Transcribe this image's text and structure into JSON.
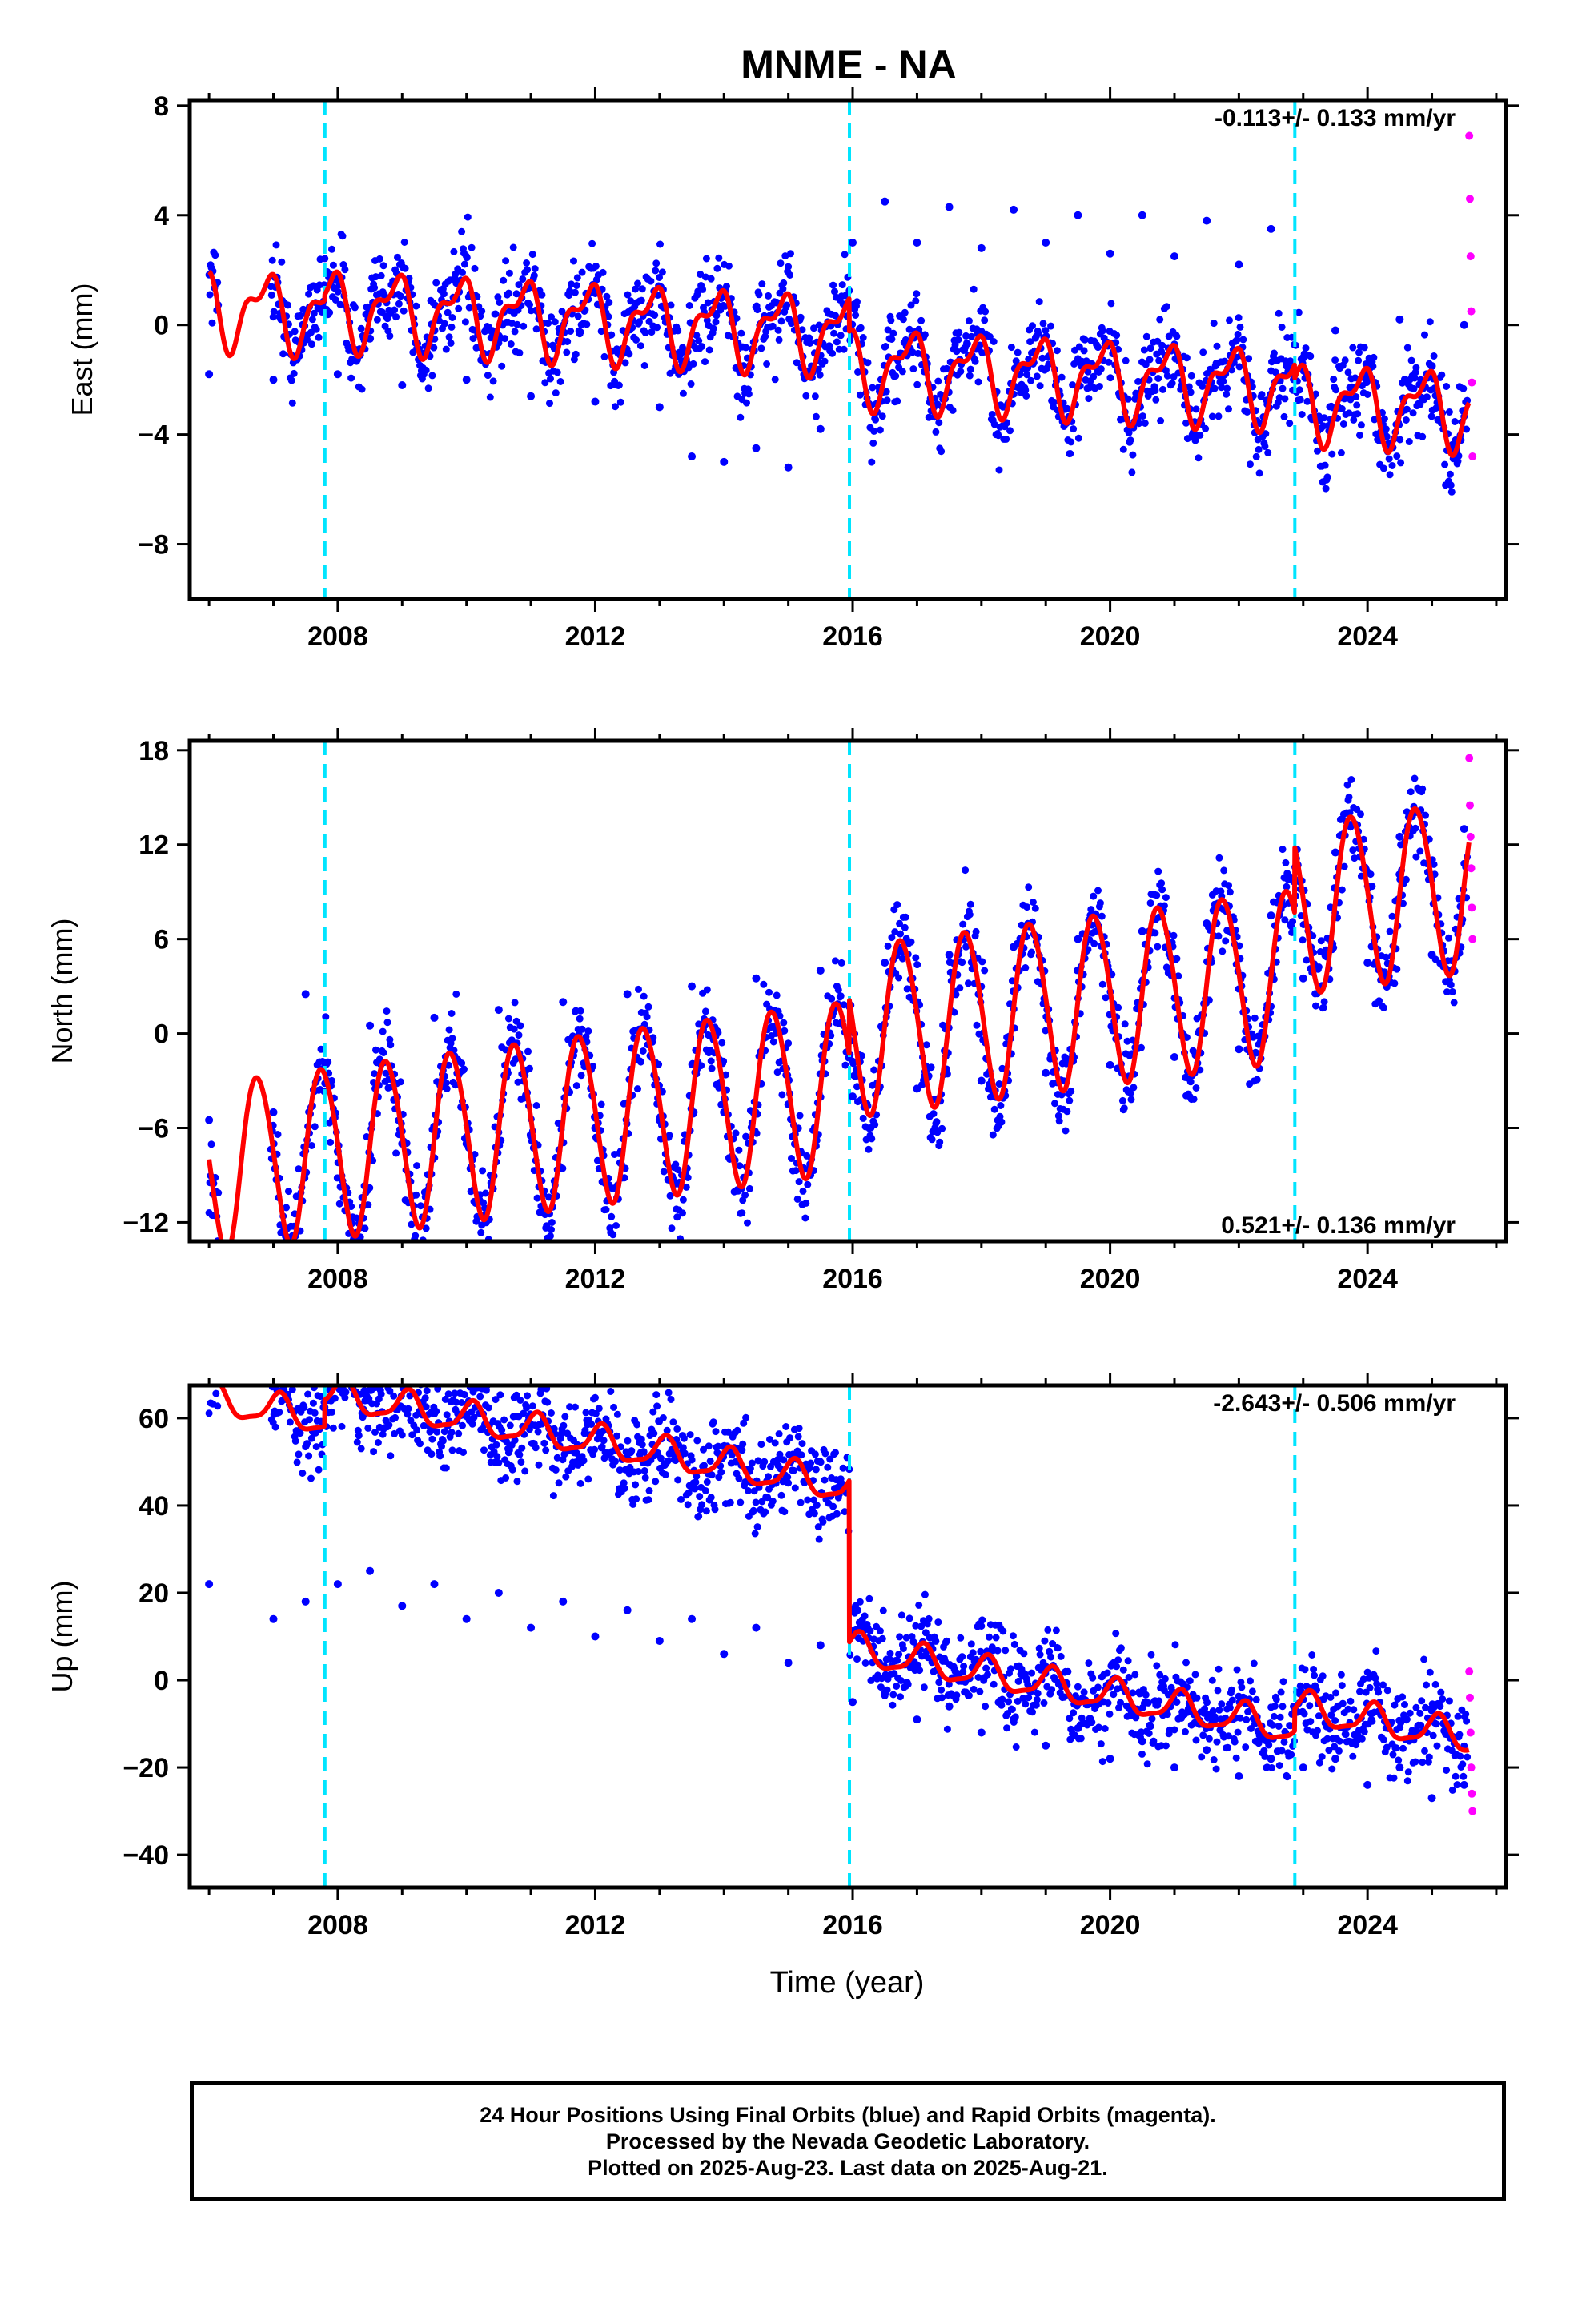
{
  "title": "MNME - NA",
  "xlabel": "Time (year)",
  "footer": {
    "line1": "24 Hour Positions Using Final Orbits (blue) and Rapid Orbits (magenta).",
    "line2": "Processed by the Nevada Geodetic Laboratory.",
    "line3": "Plotted on 2025-Aug-23. Last data on 2025-Aug-21."
  },
  "colors": {
    "final_orbits": "#0000ff",
    "rapid_orbits": "#ff00ff",
    "model_fit": "#ff0000",
    "offset_lines": "#00e5ff"
  },
  "chart_data": [
    {
      "type": "scatter",
      "component": "east",
      "ylabel": "East (mm)",
      "rate_label": "-0.113+/- 0.133 mm/yr",
      "xlim": [
        2005.7,
        2026.15
      ],
      "ylim": [
        -10,
        8.2
      ],
      "xticks": [
        2008,
        2012,
        2016,
        2020,
        2024
      ],
      "yticks": [
        -8,
        -4,
        0,
        4,
        8
      ],
      "offset_lines": [
        2007.8,
        2015.95,
        2022.87
      ],
      "grid": false,
      "series": [
        {
          "name": "Final Orbits",
          "x": [
            2006.0,
            2007.0,
            2007.5,
            2008.0,
            2008.5,
            2009.0,
            2009.5,
            2010.0,
            2010.5,
            2011.0,
            2011.5,
            2012.0,
            2012.5,
            2013.0,
            2013.5,
            2014.0,
            2014.5,
            2015.0,
            2015.5,
            2016.0,
            2016.5,
            2017.0,
            2017.5,
            2018.0,
            2018.5,
            2019.0,
            2019.5,
            2020.0,
            2020.5,
            2021.0,
            2021.5,
            2022.0,
            2022.5,
            2023.0,
            2023.5,
            2024.0,
            2024.5,
            2025.0,
            2025.5
          ],
          "y": [
            -1.8,
            -2.0,
            -0.5,
            -1.8,
            -0.5,
            -2.2,
            -0.2,
            -2.0,
            -0.4,
            -2.6,
            -0.6,
            -2.8,
            -1.0,
            -3.0,
            -4.8,
            -5.0,
            -4.5,
            -5.2,
            -3.8,
            3.0,
            4.5,
            3.0,
            4.3,
            2.8,
            4.2,
            3.0,
            4.0,
            2.6,
            4.0,
            2.5,
            3.8,
            2.2,
            3.5,
            -1.2,
            -0.2,
            -1.6,
            0.2,
            -1.5,
            0.0
          ]
        },
        {
          "name": "Rapid Orbits",
          "x": [
            2025.58,
            2025.59,
            2025.6,
            2025.61,
            2025.62,
            2025.63
          ],
          "y": [
            6.9,
            4.6,
            2.5,
            0.5,
            -2.1,
            -4.8
          ]
        },
        {
          "name": "Model",
          "model": {
            "t0": 2016,
            "rate": -0.113,
            "amp": 1.2,
            "amp2": 0.6,
            "phase": 2.4,
            "phase2": 1.0,
            "offsets": [
              {
                "x": 2005.9,
                "y": -0.5
              },
              {
                "x": 2007.8,
                "y": -0.3
              },
              {
                "x": 2015.95,
                "y": -1.5
              },
              {
                "x": 2022.87,
                "y": -2.0
              }
            ]
          }
        }
      ]
    },
    {
      "type": "scatter",
      "component": "north",
      "ylabel": "North (mm)",
      "rate_label": "0.521+/- 0.136 mm/yr",
      "xlim": [
        2005.7,
        2026.15
      ],
      "ylim": [
        -13.2,
        18.6
      ],
      "xticks": [
        2008,
        2012,
        2016,
        2020,
        2024
      ],
      "yticks": [
        -12,
        -6,
        0,
        6,
        12,
        18
      ],
      "offset_lines": [
        2007.8,
        2015.95,
        2022.87
      ],
      "grid": false,
      "series": [
        {
          "name": "Final Orbits",
          "x": [
            2006.0,
            2007.0,
            2007.5,
            2008.0,
            2008.5,
            2009.0,
            2009.5,
            2010.0,
            2010.5,
            2011.0,
            2011.5,
            2012.0,
            2012.5,
            2013.0,
            2013.5,
            2014.0,
            2014.5,
            2015.0,
            2015.5,
            2016.0,
            2016.5,
            2017.0,
            2017.5,
            2018.0,
            2018.5,
            2019.0,
            2019.5,
            2020.0,
            2020.5,
            2021.0,
            2021.5,
            2022.0,
            2022.5,
            2023.0,
            2023.5,
            2024.0,
            2024.5,
            2025.0,
            2025.5
          ],
          "y": [
            -5.5,
            -5.0,
            2.5,
            -7.5,
            0.5,
            -7.0,
            1.0,
            -7.0,
            1.5,
            -6.5,
            2.0,
            -6.0,
            2.5,
            -5.5,
            3.0,
            -5.0,
            3.5,
            -4.5,
            4.0,
            -4.0,
            4.5,
            -3.5,
            5.0,
            -3.0,
            5.5,
            -2.5,
            6.0,
            -2.0,
            6.5,
            -1.5,
            7.0,
            -1.0,
            7.5,
            3.5,
            11.5,
            4.5,
            12.5,
            5.0,
            13.0
          ]
        },
        {
          "name": "Rapid Orbits",
          "x": [
            2025.58,
            2025.59,
            2025.6,
            2025.61,
            2025.62,
            2025.63
          ],
          "y": [
            17.5,
            14.5,
            12.5,
            10.5,
            8.0,
            6.0
          ]
        },
        {
          "name": "Model",
          "model": {
            "t0": 2016,
            "rate": 0.521,
            "amp": 5.4,
            "amp2": 0.4,
            "phase": 3.1,
            "phase2": 0.5,
            "offsets": [
              {
                "x": 2005.9,
                "y": -3.2
              },
              {
                "x": 2007.8,
                "y": -3.2
              },
              {
                "x": 2015.95,
                "y": 0.3
              },
              {
                "x": 2022.87,
                "y": 4.5
              }
            ]
          }
        }
      ]
    },
    {
      "type": "scatter",
      "component": "up",
      "ylabel": "Up (mm)",
      "rate_label": "-2.643+/- 0.506 mm/yr",
      "xlim": [
        2005.7,
        2026.15
      ],
      "ylim": [
        -47.5,
        67.5
      ],
      "xticks": [
        2008,
        2012,
        2016,
        2020,
        2024
      ],
      "yticks": [
        -40,
        -20,
        0,
        20,
        40,
        60
      ],
      "offset_lines": [
        2007.8,
        2015.95,
        2022.87
      ],
      "grid": false,
      "series": [
        {
          "name": "Final Orbits",
          "x": [
            2006.0,
            2007.0,
            2007.5,
            2008.0,
            2008.5,
            2009.0,
            2009.5,
            2010.0,
            2010.5,
            2011.0,
            2011.5,
            2012.0,
            2012.5,
            2013.0,
            2013.5,
            2014.0,
            2014.5,
            2015.0,
            2015.5,
            2016.0,
            2016.5,
            2017.0,
            2017.5,
            2018.0,
            2018.5,
            2019.0,
            2019.5,
            2020.0,
            2020.5,
            2021.0,
            2021.5,
            2022.0,
            2022.5,
            2023.0,
            2023.5,
            2024.0,
            2024.5,
            2025.0,
            2025.5
          ],
          "y": [
            22,
            14,
            18,
            22,
            25,
            17,
            22,
            14,
            20,
            12,
            18,
            10,
            16,
            9,
            14,
            6,
            12,
            4,
            8,
            -5,
            -3,
            -9,
            -6,
            -12,
            -9,
            -15,
            -11,
            -18,
            -14,
            -20,
            -16,
            -22,
            -18,
            -20,
            -18,
            -24,
            -20,
            -27,
            -24
          ]
        },
        {
          "name": "Rapid Orbits",
          "x": [
            2025.58,
            2025.59,
            2025.6,
            2025.61,
            2025.62,
            2025.63
          ],
          "y": [
            2,
            -4,
            -12,
            -20,
            -26,
            -30
          ]
        },
        {
          "name": "Model",
          "model": {
            "t0": 2016,
            "rate": -2.643,
            "amp": 3.5,
            "amp2": 1.0,
            "phase": 1.0,
            "phase2": 0.0,
            "offsets": [
              {
                "x": 2005.9,
                "y": 38
              },
              {
                "x": 2007.8,
                "y": 44
              },
              {
                "x": 2015.95,
                "y": 7
              },
              {
                "x": 2022.87,
                "y": 12
              }
            ]
          }
        }
      ]
    }
  ]
}
